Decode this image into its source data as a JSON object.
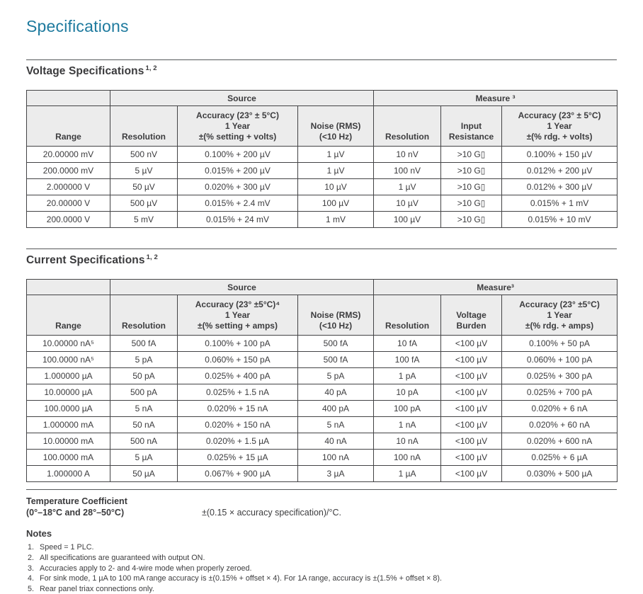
{
  "page": {
    "title": "Specifications"
  },
  "colors": {
    "accent": "#1e7a9e",
    "header_bg": "#ececec",
    "border": "#434345",
    "text": "#3c3c3e"
  },
  "voltage": {
    "heading": "Voltage Specifications",
    "heading_sup": "1, 2",
    "group_source": "Source",
    "group_measure": "Measure ³",
    "columns": [
      "Range",
      "Resolution",
      "Accuracy (23° ± 5°C)\n1 Year\n±(% setting + volts)",
      "Noise (RMS)\n(<10 Hz)",
      "Resolution",
      "Input\nResistance",
      "Accuracy (23° ± 5°C)\n1 Year\n±(% rdg. + volts)"
    ],
    "rows": [
      [
        "20.00000 mV",
        "500 nV",
        "0.100% + 200 µV",
        "1 µV",
        "10 nV",
        ">10 G▯",
        "0.100% + 150 µV"
      ],
      [
        "200.0000 mV",
        "5 µV",
        "0.015% + 200 µV",
        "1 µV",
        "100 nV",
        ">10 G▯",
        "0.012% + 200 µV"
      ],
      [
        "2.000000 V",
        "50 µV",
        "0.020% + 300 µV",
        "10 µV",
        "1 µV",
        ">10 G▯",
        "0.012% + 300 µV"
      ],
      [
        "20.00000 V",
        "500 µV",
        "0.015% + 2.4 mV",
        "100 µV",
        "10 µV",
        ">10 G▯",
        "0.015% + 1 mV"
      ],
      [
        "200.0000 V",
        "5 mV",
        "0.015% + 24 mV",
        "1 mV",
        "100 µV",
        ">10 G▯",
        "0.015% + 10 mV"
      ]
    ]
  },
  "current": {
    "heading": "Current Specifications",
    "heading_sup": "1, 2",
    "group_source": "Source",
    "group_measure": "Measure³",
    "columns": [
      "Range",
      "Resolution",
      "Accuracy (23° ±5°C)⁴\n1 Year\n±(% setting + amps)",
      "Noise (RMS)\n(<10 Hz)",
      "Resolution",
      "Voltage\nBurden",
      "Accuracy (23° ±5°C)\n1 Year\n±(% rdg. + amps)"
    ],
    "rows": [
      [
        "10.00000 nA⁵",
        "500 fA",
        "0.100% + 100 pA",
        "500 fA",
        "10 fA",
        "<100 µV",
        "0.100% + 50 pA"
      ],
      [
        "100.0000 nA⁵",
        "5 pA",
        "0.060% + 150 pA",
        "500 fA",
        "100 fA",
        "<100 µV",
        "0.060% + 100 pA"
      ],
      [
        "1.000000 µA",
        "50 pA",
        "0.025% + 400 pA",
        "5 pA",
        "1 pA",
        "<100 µV",
        "0.025% + 300 pA"
      ],
      [
        "10.00000 µA",
        "500 pA",
        "0.025% + 1.5 nA",
        "40 pA",
        "10 pA",
        "<100 µV",
        "0.025% + 700 pA"
      ],
      [
        "100.0000 µA",
        "5 nA",
        "0.020% + 15 nA",
        "400 pA",
        "100 pA",
        "<100 µV",
        "0.020% + 6 nA"
      ],
      [
        "1.000000 mA",
        "50 nA",
        "0.020% + 150 nA",
        "5 nA",
        "1 nA",
        "<100 µV",
        "0.020% + 60 nA"
      ],
      [
        "10.00000 mA",
        "500 nA",
        "0.020% + 1.5 µA",
        "40 nA",
        "10 nA",
        "<100 µV",
        "0.020% + 600 nA"
      ],
      [
        "100.0000 mA",
        "5 µA",
        "0.025% + 15 µA",
        "100 nA",
        "100 nA",
        "<100 µV",
        "0.025% + 6 µA"
      ],
      [
        "1.000000 A",
        "50 µA",
        "0.067% + 900 µA",
        "3 µA",
        "1 µA",
        "<100 µV",
        "0.030% + 500 µA"
      ]
    ]
  },
  "temp_coeff": {
    "title": "Temperature Coefficient",
    "range": "(0°–18°C and 28°–50°C)",
    "value": "±(0.15 × accuracy specification)/°C."
  },
  "notes": {
    "heading": "Notes",
    "items": [
      {
        "num": "1.",
        "text": "Speed = 1 PLC."
      },
      {
        "num": "2.",
        "text": "All specifications are guaranteed with output ON."
      },
      {
        "num": "3.",
        "text": "Accuracies apply to 2- and 4-wire mode when properly zeroed."
      },
      {
        "num": "4.",
        "text": "For sink mode, 1 µA to 100 mA range accuracy is ±(0.15% + offset × 4). For 1A range, accuracy is ±(1.5% + offset × 8)."
      },
      {
        "num": "5.",
        "text": "Rear panel triax connections only."
      }
    ]
  }
}
